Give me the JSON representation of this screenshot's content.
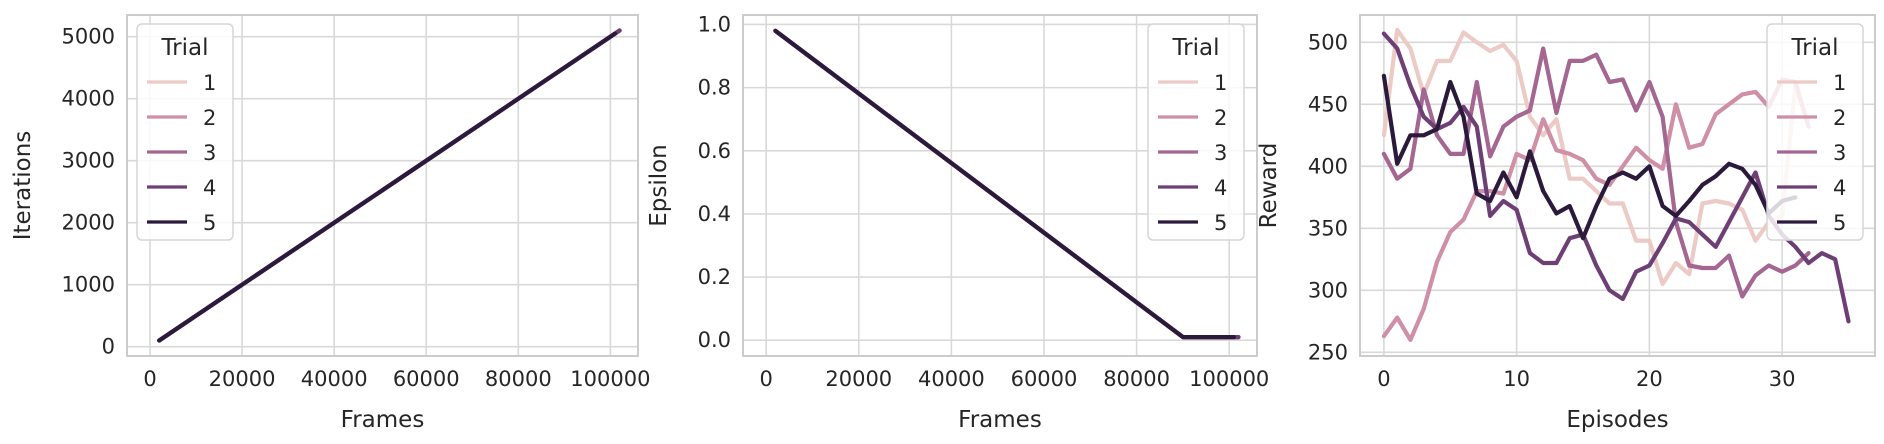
{
  "palette": {
    "1": "#eccac5",
    "2": "#cf8fa4",
    "3": "#a36792",
    "4": "#6e3f75",
    "5": "#2b1a3c"
  },
  "legend": {
    "title": "Trial",
    "entries": [
      "1",
      "2",
      "3",
      "4",
      "5"
    ]
  },
  "chart_data": [
    {
      "type": "line",
      "xlabel": "Frames",
      "ylabel": "Iterations",
      "xlim": [
        -5000,
        106000
      ],
      "ylim": [
        -150,
        5350
      ],
      "xticks": [
        0,
        20000,
        40000,
        60000,
        80000,
        100000
      ],
      "yticks": [
        0,
        1000,
        2000,
        3000,
        4000,
        5000
      ],
      "xtick_labels": [
        "0",
        "20000",
        "40000",
        "60000",
        "80000",
        "100000"
      ],
      "ytick_labels": [
        "0",
        "1000",
        "2000",
        "3000",
        "4000",
        "5000"
      ],
      "grid": true,
      "legend_position": "upper-left",
      "series": [
        {
          "name": "1",
          "x": [
            2000,
            102000
          ],
          "y": [
            100,
            5100
          ]
        },
        {
          "name": "2",
          "x": [
            2000,
            102000
          ],
          "y": [
            100,
            5100
          ]
        },
        {
          "name": "3",
          "x": [
            2000,
            102000
          ],
          "y": [
            100,
            5100
          ]
        },
        {
          "name": "4",
          "x": [
            2000,
            102000
          ],
          "y": [
            100,
            5100
          ]
        },
        {
          "name": "5",
          "x": [
            2000,
            101000
          ],
          "y": [
            100,
            5050
          ]
        }
      ]
    },
    {
      "type": "line",
      "xlabel": "Frames",
      "ylabel": "Epsilon",
      "xlim": [
        -5000,
        106000
      ],
      "ylim": [
        -0.05,
        1.03
      ],
      "xticks": [
        0,
        20000,
        40000,
        60000,
        80000,
        100000
      ],
      "yticks": [
        0.0,
        0.2,
        0.4,
        0.6,
        0.8,
        1.0
      ],
      "xtick_labels": [
        "0",
        "20000",
        "40000",
        "60000",
        "80000",
        "100000"
      ],
      "ytick_labels": [
        "0.0",
        "0.2",
        "0.4",
        "0.6",
        "0.8",
        "1.0"
      ],
      "grid": true,
      "legend_position": "upper-right",
      "series": [
        {
          "name": "1",
          "x": [
            2000,
            90000,
            102000
          ],
          "y": [
            0.98,
            0.01,
            0.01
          ]
        },
        {
          "name": "2",
          "x": [
            2000,
            90000,
            102000
          ],
          "y": [
            0.98,
            0.01,
            0.01
          ]
        },
        {
          "name": "3",
          "x": [
            2000,
            90000,
            102000
          ],
          "y": [
            0.98,
            0.01,
            0.01
          ]
        },
        {
          "name": "4",
          "x": [
            2000,
            90000,
            102000
          ],
          "y": [
            0.98,
            0.01,
            0.01
          ]
        },
        {
          "name": "5",
          "x": [
            2000,
            90000,
            101000
          ],
          "y": [
            0.98,
            0.01,
            0.01
          ]
        }
      ]
    },
    {
      "type": "line",
      "xlabel": "Episodes",
      "ylabel": "Reward",
      "xlim": [
        -1.8,
        37
      ],
      "ylim": [
        247,
        522
      ],
      "xticks": [
        0,
        10,
        20,
        30
      ],
      "yticks": [
        250,
        300,
        350,
        400,
        450,
        500
      ],
      "xtick_labels": [
        "0",
        "10",
        "20",
        "30"
      ],
      "ytick_labels": [
        "250",
        "300",
        "350",
        "400",
        "450",
        "500"
      ],
      "grid": true,
      "legend_position": "upper-right",
      "series": [
        {
          "name": "1",
          "x": [
            0,
            1,
            2,
            3,
            4,
            5,
            6,
            7,
            8,
            9,
            10,
            11,
            12,
            13,
            14,
            15,
            16,
            17,
            18,
            19,
            20,
            21,
            22,
            23,
            24,
            25,
            26,
            27,
            28,
            29,
            30,
            31,
            32
          ],
          "y": [
            425,
            510,
            495,
            458,
            485,
            485,
            508,
            500,
            493,
            498,
            485,
            440,
            425,
            438,
            390,
            390,
            380,
            370,
            370,
            340,
            340,
            305,
            322,
            313,
            370,
            372,
            370,
            365,
            340,
            355,
            360,
            465,
            432
          ]
        },
        {
          "name": "2",
          "x": [
            0,
            1,
            2,
            3,
            4,
            5,
            6,
            7,
            8,
            9,
            10,
            11,
            12,
            13,
            14,
            15,
            16,
            17,
            18,
            19,
            20,
            21,
            22,
            23,
            24,
            25,
            26,
            27,
            28,
            29,
            30,
            31,
            32
          ],
          "y": [
            263,
            278,
            260,
            285,
            323,
            347,
            357,
            380,
            380,
            378,
            410,
            405,
            438,
            413,
            410,
            405,
            390,
            385,
            400,
            415,
            405,
            398,
            450,
            415,
            418,
            442,
            450,
            458,
            460,
            448,
            470,
            468,
            432
          ]
        },
        {
          "name": "3",
          "x": [
            0,
            1,
            2,
            3,
            4,
            5,
            6,
            7,
            8,
            9,
            10,
            11,
            12,
            13,
            14,
            15,
            16,
            17,
            18,
            19,
            20,
            21,
            22,
            23,
            24,
            25,
            26,
            27,
            28,
            29,
            30,
            31,
            32
          ],
          "y": [
            410,
            390,
            398,
            462,
            425,
            410,
            410,
            468,
            408,
            432,
            440,
            445,
            495,
            443,
            485,
            485,
            490,
            468,
            470,
            445,
            468,
            440,
            355,
            320,
            318,
            318,
            328,
            295,
            312,
            320,
            315,
            320,
            330
          ]
        },
        {
          "name": "4",
          "x": [
            0,
            1,
            2,
            3,
            4,
            5,
            6,
            7,
            8,
            9,
            10,
            11,
            12,
            13,
            14,
            15,
            16,
            17,
            18,
            19,
            20,
            21,
            22,
            23,
            24,
            25,
            26,
            27,
            28,
            29,
            30,
            31,
            32,
            33,
            34,
            35
          ],
          "y": [
            507,
            495,
            465,
            440,
            430,
            435,
            448,
            432,
            360,
            372,
            365,
            330,
            322,
            322,
            342,
            345,
            320,
            300,
            293,
            315,
            320,
            338,
            358,
            355,
            345,
            335,
            355,
            375,
            395,
            360,
            345,
            335,
            322,
            330,
            325,
            275
          ]
        },
        {
          "name": "5",
          "x": [
            0,
            1,
            2,
            3,
            4,
            5,
            6,
            7,
            8,
            9,
            10,
            11,
            12,
            13,
            14,
            15,
            16,
            17,
            18,
            19,
            20,
            21,
            22,
            23,
            24,
            25,
            26,
            27,
            28,
            29,
            30,
            31
          ],
          "y": [
            473,
            402,
            425,
            425,
            430,
            468,
            440,
            378,
            372,
            395,
            375,
            412,
            380,
            362,
            368,
            342,
            368,
            390,
            395,
            390,
            400,
            368,
            360,
            372,
            385,
            392,
            402,
            398,
            385,
            362,
            372,
            375
          ]
        }
      ]
    }
  ]
}
